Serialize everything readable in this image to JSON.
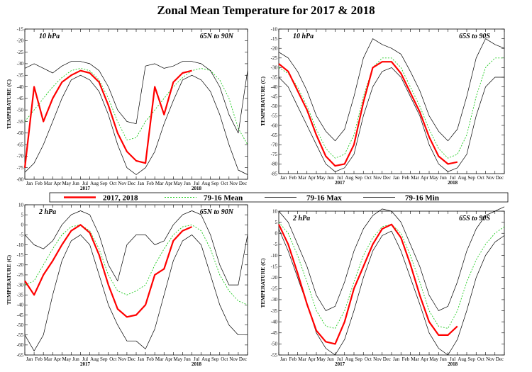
{
  "title": "Zonal Mean Temperature for 2017 & 2018",
  "legend": [
    {
      "label": "2017, 2018",
      "color": "#ff0000",
      "style": "solid-thick"
    },
    {
      "label": "79-16 Mean",
      "color": "#22cc22",
      "style": "dotted"
    },
    {
      "label": "79-16 Max",
      "color": "#000000",
      "style": "solid"
    },
    {
      "label": "79-16 Min",
      "color": "#000000",
      "style": "solid"
    }
  ],
  "chart_data": [
    {
      "type": "line",
      "level": "10 hPa",
      "region": "65N to 90N",
      "ylabel": "TEMPERATURE (C)",
      "ylim": [
        -80,
        -15
      ],
      "yticks": [
        -80,
        -75,
        -70,
        -65,
        -60,
        -55,
        -50,
        -45,
        -40,
        -35,
        -30,
        -25,
        -20,
        -15
      ],
      "months": [
        "Jan",
        "Feb",
        "Mar",
        "Apr",
        "May",
        "Jun",
        "Jul",
        "Aug",
        "Sep",
        "Oct",
        "Nov",
        "Dec",
        "Jan",
        "Feb",
        "Mar",
        "Apr",
        "May",
        "Jun",
        "Jul",
        "Aug",
        "Sep",
        "Oct",
        "Nov",
        "Dec"
      ],
      "years": [
        "2017",
        "2018"
      ],
      "x_month": [
        0,
        1,
        2,
        3,
        4,
        5,
        6,
        7,
        8,
        9,
        10,
        11,
        12,
        13,
        14,
        15,
        16,
        17,
        18,
        19,
        20,
        21,
        22,
        23,
        24
      ],
      "series": [
        {
          "name": "79-16 Mean",
          "values": [
            -55,
            -50,
            -45,
            -40,
            -36,
            -33,
            -32,
            -33,
            -37,
            -45,
            -55,
            -63,
            -62,
            -55,
            -50,
            -45,
            -40,
            -36,
            -33,
            -32,
            -33,
            -37,
            -45,
            -58,
            -65
          ]
        },
        {
          "name": "79-16 Max",
          "values": [
            -32,
            -30,
            -32,
            -34,
            -31,
            -29,
            -29,
            -30,
            -33,
            -40,
            -50,
            -55,
            -56,
            -31,
            -30,
            -32,
            -31,
            -29,
            -29,
            -30,
            -33,
            -40,
            -52,
            -60,
            -33
          ]
        },
        {
          "name": "79-16 Min",
          "values": [
            -77,
            -73,
            -65,
            -55,
            -45,
            -37,
            -35,
            -37,
            -42,
            -52,
            -65,
            -75,
            -78,
            -75,
            -68,
            -56,
            -46,
            -37,
            -35,
            -37,
            -42,
            -52,
            -65,
            -76,
            -78
          ]
        },
        {
          "name": "2017, 2018",
          "values": [
            -75,
            -40,
            -55,
            -45,
            -38,
            -35,
            -33,
            -34,
            -38,
            -48,
            -60,
            -68,
            -72,
            -73,
            -40,
            -52,
            -38,
            -34,
            -33,
            null,
            null,
            null,
            null,
            null,
            null
          ]
        }
      ]
    },
    {
      "type": "line",
      "level": "10 hPa",
      "region": "65S to 90S",
      "ylabel": "TEMPERATURE (C)",
      "ylim": [
        -85,
        -10
      ],
      "yticks": [
        -85,
        -80,
        -75,
        -70,
        -65,
        -60,
        -55,
        -50,
        -45,
        -40,
        -35,
        -30,
        -25,
        -20,
        -15,
        -10
      ],
      "months": [
        "Jan",
        "Feb",
        "Mar",
        "Apr",
        "May",
        "Jun",
        "Jul",
        "Aug",
        "Sep",
        "Oct",
        "Nov",
        "Dec",
        "Jan",
        "Feb",
        "Mar",
        "Apr",
        "May",
        "Jun",
        "Jul",
        "Aug",
        "Sep",
        "Oct",
        "Nov",
        "Dec"
      ],
      "years": [
        "2017",
        "2018"
      ],
      "x_month": [
        0,
        1,
        2,
        3,
        4,
        5,
        6,
        7,
        8,
        9,
        10,
        11,
        12,
        13,
        14,
        15,
        16,
        17,
        18,
        19,
        20,
        21,
        22,
        23,
        24
      ],
      "series": [
        {
          "name": "79-16 Mean",
          "values": [
            -30,
            -33,
            -40,
            -50,
            -62,
            -72,
            -77,
            -75,
            -65,
            -45,
            -30,
            -25,
            -25,
            -30,
            -40,
            -50,
            -62,
            -72,
            -77,
            -75,
            -65,
            -45,
            -30,
            -25,
            -25
          ]
        },
        {
          "name": "79-16 Max",
          "values": [
            -22,
            -25,
            -32,
            -42,
            -55,
            -63,
            -68,
            -62,
            -45,
            -25,
            -15,
            -18,
            -20,
            -23,
            -32,
            -42,
            -55,
            -63,
            -68,
            -62,
            -45,
            -25,
            -15,
            -18,
            -20
          ]
        },
        {
          "name": "79-16 Min",
          "values": [
            -35,
            -40,
            -50,
            -60,
            -70,
            -80,
            -84,
            -82,
            -75,
            -55,
            -40,
            -32,
            -30,
            -35,
            -45,
            -55,
            -70,
            -80,
            -84,
            -82,
            -75,
            -55,
            -40,
            -35,
            -35
          ]
        },
        {
          "name": "2017, 2018",
          "values": [
            -28,
            -32,
            -42,
            -52,
            -65,
            -76,
            -81,
            -80,
            -70,
            -48,
            -30,
            -27,
            -27,
            -33,
            -43,
            -53,
            -66,
            -76,
            -80,
            -79,
            null,
            null,
            null,
            null,
            null
          ]
        }
      ]
    },
    {
      "type": "line",
      "level": "2 hPa",
      "region": "65N to 90N",
      "ylabel": "TEMPERATURE (C)",
      "ylim": [
        -65,
        10
      ],
      "yticks": [
        -65,
        -60,
        -55,
        -50,
        -45,
        -40,
        -35,
        -30,
        -25,
        -20,
        -15,
        -10,
        -5,
        0,
        5,
        10
      ],
      "months": [
        "Jan",
        "Feb",
        "Mar",
        "Apr",
        "May",
        "Jun",
        "Jul",
        "Aug",
        "Sep",
        "Oct",
        "Nov",
        "Dec",
        "Jan",
        "Feb",
        "Mar",
        "Apr",
        "May",
        "Jun",
        "Jul",
        "Aug",
        "Sep",
        "Oct",
        "Nov",
        "Dec"
      ],
      "years": [
        "2017",
        "2018"
      ],
      "x_month": [
        0,
        1,
        2,
        3,
        4,
        5,
        6,
        7,
        8,
        9,
        10,
        11,
        12,
        13,
        14,
        15,
        16,
        17,
        18,
        19,
        20,
        21,
        22,
        23,
        24
      ],
      "series": [
        {
          "name": "79-16 Mean",
          "values": [
            -30,
            -28,
            -20,
            -12,
            -5,
            -1,
            0,
            -3,
            -12,
            -25,
            -33,
            -35,
            -33,
            -30,
            -20,
            -12,
            -5,
            -1,
            0,
            -3,
            -12,
            -25,
            -33,
            -38,
            -40
          ]
        },
        {
          "name": "79-16 Max",
          "values": [
            -5,
            -10,
            -12,
            -8,
            0,
            5,
            7,
            5,
            -5,
            -20,
            -28,
            -10,
            -5,
            -5,
            -10,
            -8,
            0,
            5,
            7,
            5,
            -5,
            -20,
            -30,
            -30,
            -5
          ]
        },
        {
          "name": "79-16 Min",
          "values": [
            -55,
            -63,
            -55,
            -35,
            -18,
            -8,
            -5,
            -10,
            -25,
            -40,
            -50,
            -58,
            -58,
            -62,
            -52,
            -35,
            -18,
            -8,
            -5,
            -10,
            -25,
            -40,
            -50,
            -55,
            -55
          ]
        },
        {
          "name": "2017, 2018",
          "values": [
            -28,
            -35,
            -25,
            -18,
            -10,
            -3,
            0,
            -4,
            -15,
            -30,
            -42,
            -46,
            -45,
            -40,
            -25,
            -22,
            -8,
            -3,
            -1,
            null,
            null,
            null,
            null,
            null,
            null
          ]
        }
      ]
    },
    {
      "type": "line",
      "level": "2 hPa",
      "region": "65S to 90S",
      "ylabel": "TEMPERATURE (C)",
      "ylim": [
        -55,
        10
      ],
      "yticks": [
        -55,
        -50,
        -45,
        -40,
        -35,
        -30,
        -25,
        -20,
        -15,
        -10,
        -5,
        0,
        5,
        10
      ],
      "months": [
        "Jan",
        "Feb",
        "Mar",
        "Apr",
        "May",
        "Jun",
        "Jul",
        "Aug",
        "Sep",
        "Oct",
        "Nov",
        "Dec",
        "Jan",
        "Feb",
        "Mar",
        "Apr",
        "May",
        "Jun",
        "Jul",
        "Aug",
        "Sep",
        "Oct",
        "Nov",
        "Dec"
      ],
      "years": [
        "2017",
        "2018"
      ],
      "x_month": [
        0,
        1,
        2,
        3,
        4,
        5,
        6,
        7,
        8,
        9,
        10,
        11,
        12,
        13,
        14,
        15,
        16,
        17,
        18,
        19,
        20,
        21,
        22,
        23,
        24
      ],
      "series": [
        {
          "name": "79-16 Mean",
          "values": [
            5,
            0,
            -10,
            -22,
            -35,
            -42,
            -43,
            -35,
            -22,
            -10,
            -2,
            3,
            4,
            0,
            -10,
            -22,
            -35,
            -42,
            -43,
            -35,
            -22,
            -12,
            -5,
            0,
            3
          ]
        },
        {
          "name": "79-16 Max",
          "values": [
            10,
            5,
            -5,
            -15,
            -28,
            -35,
            -33,
            -22,
            -8,
            2,
            8,
            11,
            10,
            5,
            -5,
            -15,
            -28,
            -35,
            -33,
            -22,
            -8,
            2,
            8,
            10,
            12
          ]
        },
        {
          "name": "79-16 Min",
          "values": [
            2,
            -8,
            -20,
            -32,
            -45,
            -52,
            -55,
            -48,
            -35,
            -20,
            -8,
            -1,
            1,
            -8,
            -20,
            -32,
            -45,
            -52,
            -55,
            -48,
            -35,
            -20,
            -10,
            -4,
            -1
          ]
        },
        {
          "name": "2017, 2018",
          "values": [
            4,
            -5,
            -18,
            -32,
            -44,
            -49,
            -50,
            -40,
            -25,
            -15,
            -5,
            2,
            4,
            -2,
            -14,
            -28,
            -40,
            -46,
            -46,
            -42,
            null,
            null,
            null,
            null,
            null
          ]
        }
      ]
    }
  ]
}
